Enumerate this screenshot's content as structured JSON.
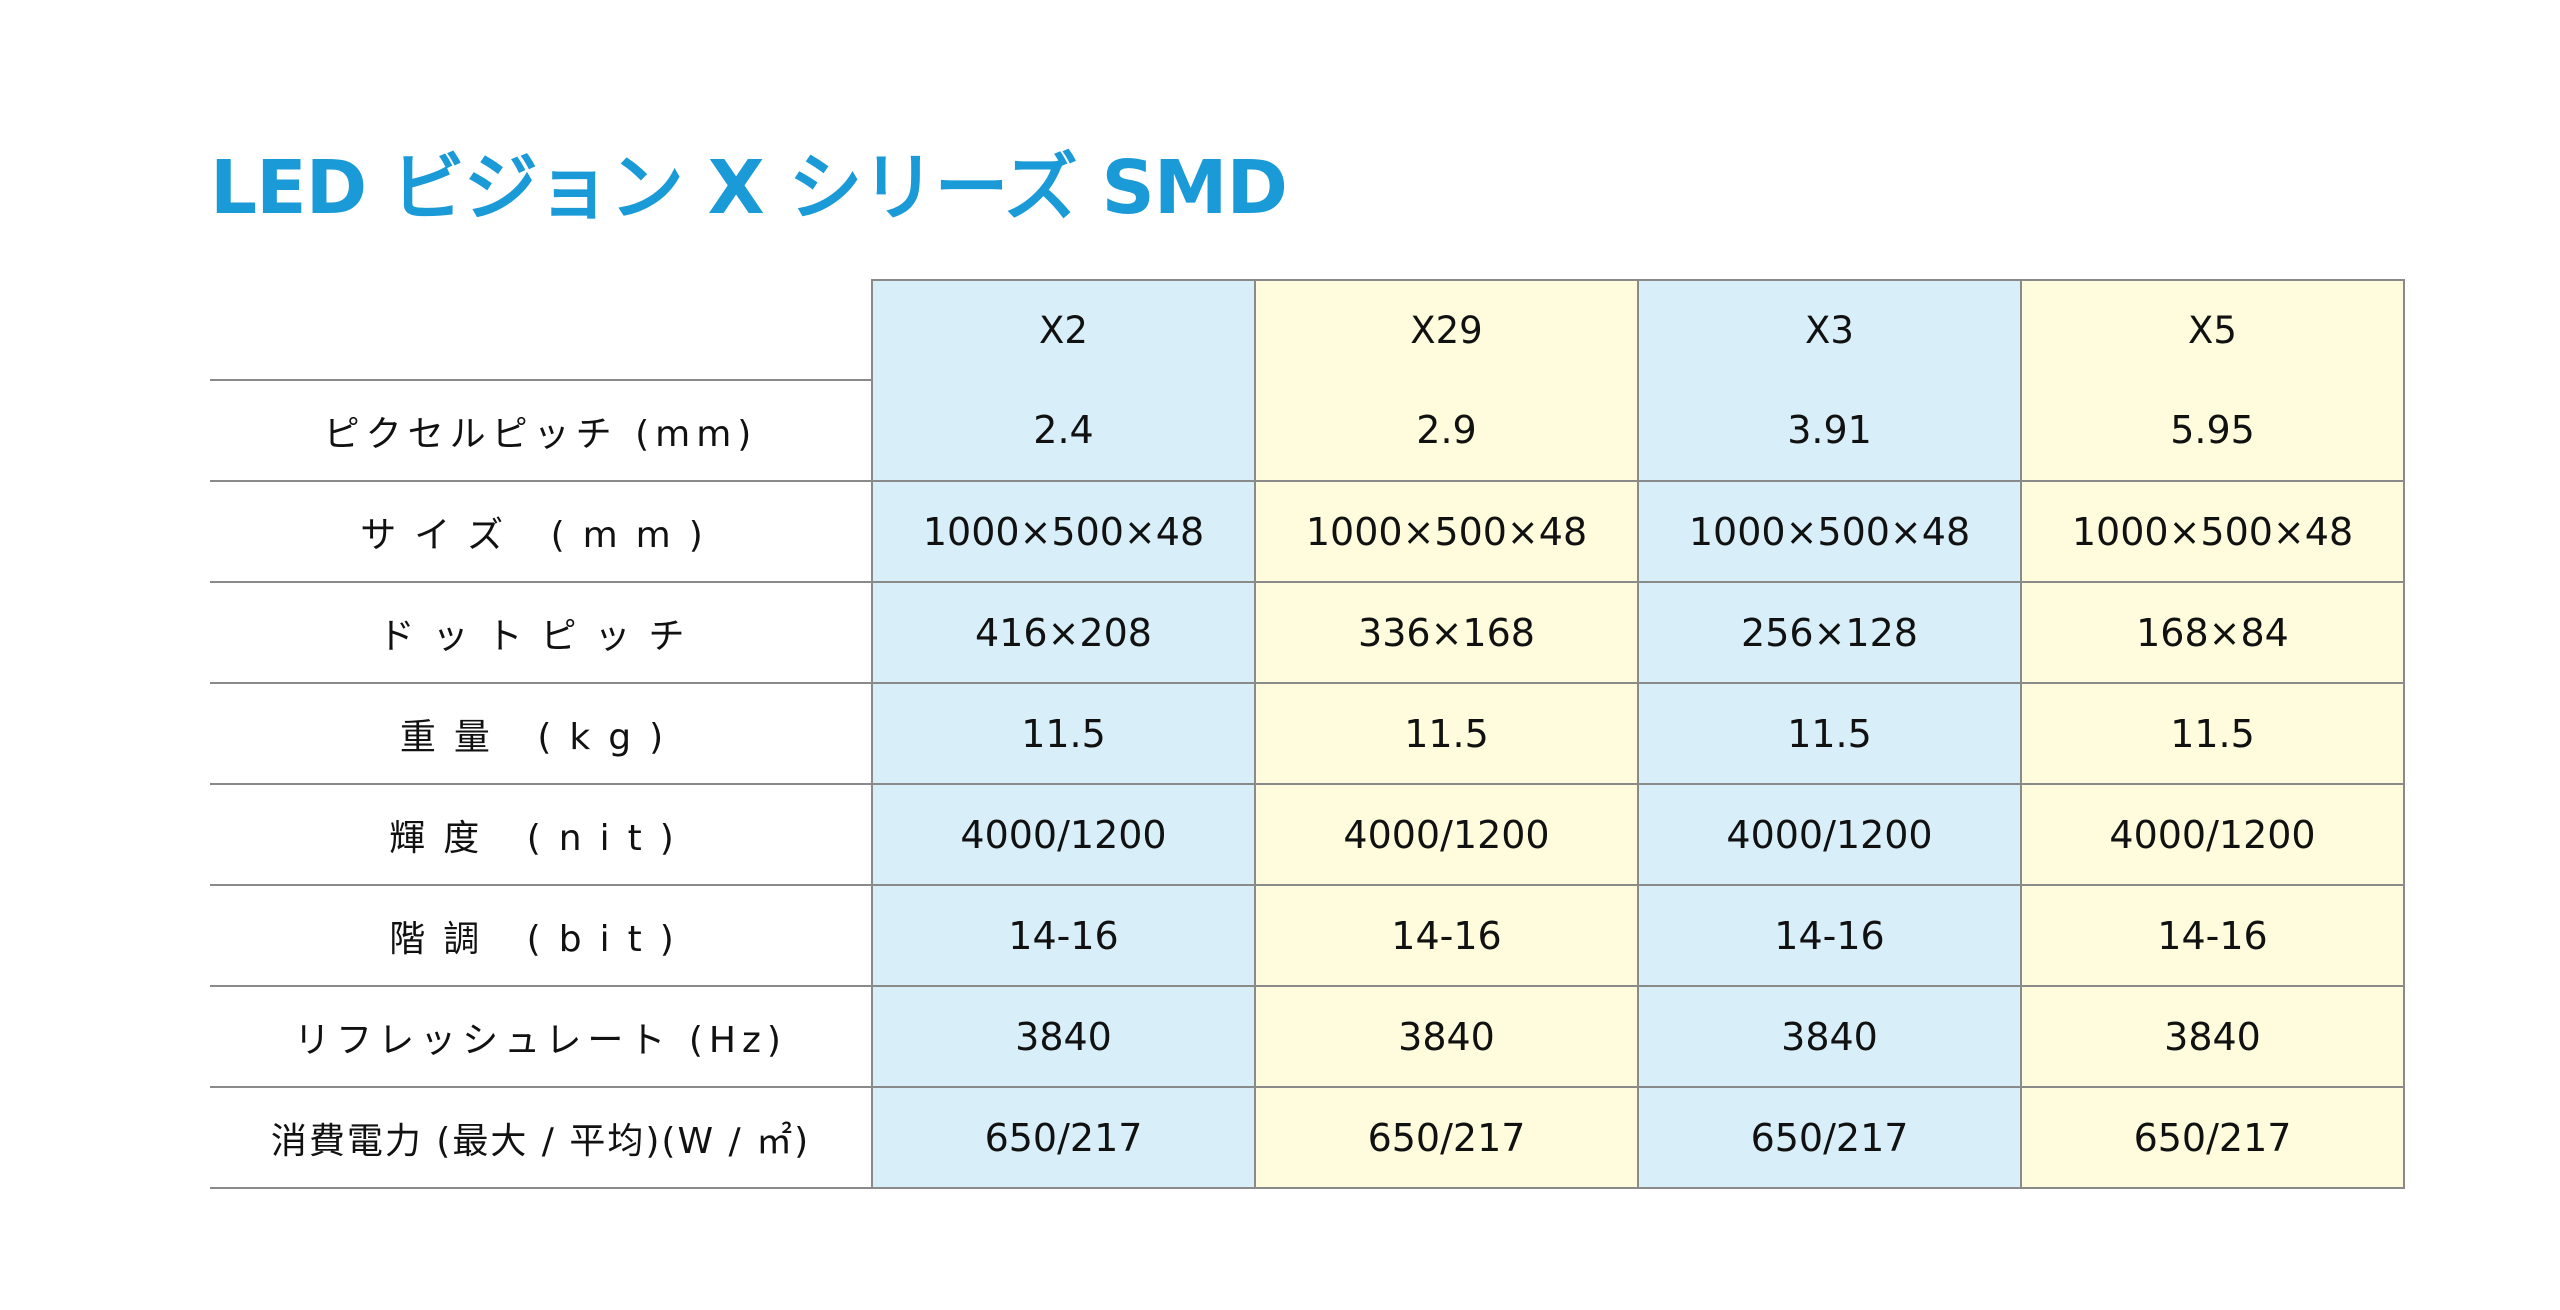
{
  "title": "LED ビジョン X シリーズ SMD",
  "columns": [
    "X2",
    "X29",
    "X3",
    "X5"
  ],
  "colors": {
    "title": "#1a9ad6",
    "blue_column": "#d8eff9",
    "yellow_column": "#fefcdc",
    "grid": "#8a8a8a"
  },
  "rows": [
    {
      "label": "ピクセルピッチ (mm)",
      "values": [
        "2.4",
        "2.9",
        "3.91",
        "5.95"
      ]
    },
    {
      "label": "サイズ (mm)",
      "values": [
        "1000×500×48",
        "1000×500×48",
        "1000×500×48",
        "1000×500×48"
      ]
    },
    {
      "label": "ドットピッチ",
      "values": [
        "416×208",
        "336×168",
        "256×128",
        "168×84"
      ]
    },
    {
      "label": "重量 (kg)",
      "values": [
        "11.5",
        "11.5",
        "11.5",
        "11.5"
      ]
    },
    {
      "label": "輝度 (nit)",
      "values": [
        "4000/1200",
        "4000/1200",
        "4000/1200",
        "4000/1200"
      ]
    },
    {
      "label": "階調 (bit)",
      "values": [
        "14-16",
        "14-16",
        "14-16",
        "14-16"
      ]
    },
    {
      "label": "リフレッシュレート (Hz)",
      "values": [
        "3840",
        "3840",
        "3840",
        "3840"
      ]
    },
    {
      "label": "消費電力 (最大 / 平均)(W / ㎡)",
      "values": [
        "650/217",
        "650/217",
        "650/217",
        "650/217"
      ]
    }
  ]
}
